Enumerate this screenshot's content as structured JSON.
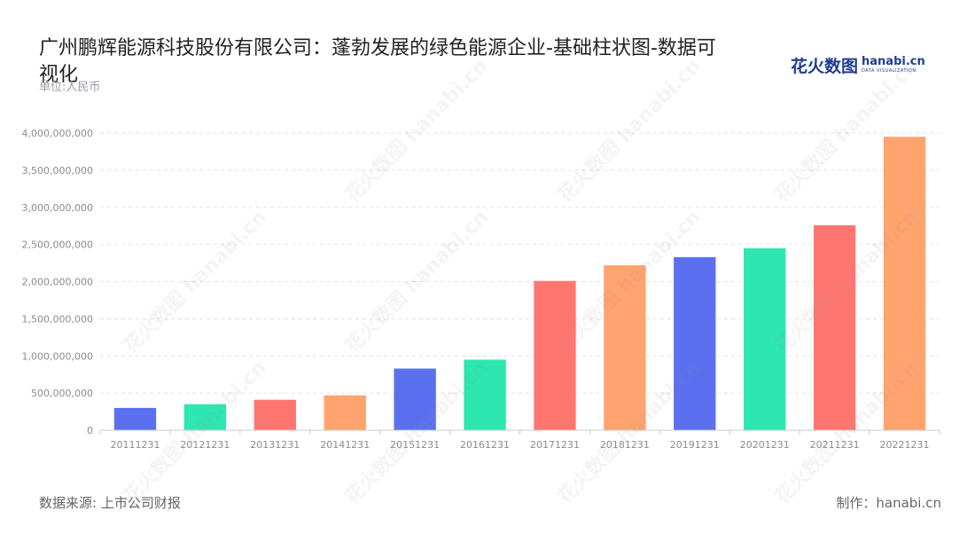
{
  "title": "广州鹏辉能源科技股份有限公司：蓬勃发展的绿色能源企业-基础柱状图-数据可视化",
  "unit_label": "单位:人民币",
  "logo": {
    "cn": "花火数图",
    "en": "hanabi.cn",
    "en_sub": "DATA VISUALIZATION"
  },
  "footer": {
    "source": "数据来源: 上市公司财报",
    "maker": "制作：hanabi.cn"
  },
  "watermark": "花火数图 hanabi.cn",
  "colors": {
    "blue": "#5b70ee",
    "green": "#2de6b0",
    "red": "#ff7670",
    "orange": "#ffa36f",
    "axis": "#cccccc",
    "grid": "#e3e3e3",
    "tick_text": "#8a8a96"
  },
  "chart_data": {
    "type": "bar",
    "categories": [
      "20111231",
      "20121231",
      "20131231",
      "20141231",
      "20151231",
      "20161231",
      "20171231",
      "20181231",
      "20191231",
      "20201231",
      "20211231",
      "20221231"
    ],
    "values": [
      300000000,
      350000000,
      410000000,
      470000000,
      830000000,
      950000000,
      2010000000,
      2220000000,
      2330000000,
      2450000000,
      2760000000,
      3950000000
    ],
    "bar_colors": [
      "#5b70ee",
      "#2de6b0",
      "#ff7670",
      "#ffa36f",
      "#5b70ee",
      "#2de6b0",
      "#ff7670",
      "#ffa36f",
      "#5b70ee",
      "#2de6b0",
      "#ff7670",
      "#ffa36f"
    ],
    "yticks": [
      "0",
      "500,000,000",
      "1,000,000,000",
      "1,500,000,000",
      "2,000,000,000",
      "2,500,000,000",
      "3,000,000,000",
      "3,500,000,000",
      "4,000,000,000"
    ],
    "ylim": [
      0,
      4000000000
    ],
    "grid": true,
    "legend": "none"
  }
}
